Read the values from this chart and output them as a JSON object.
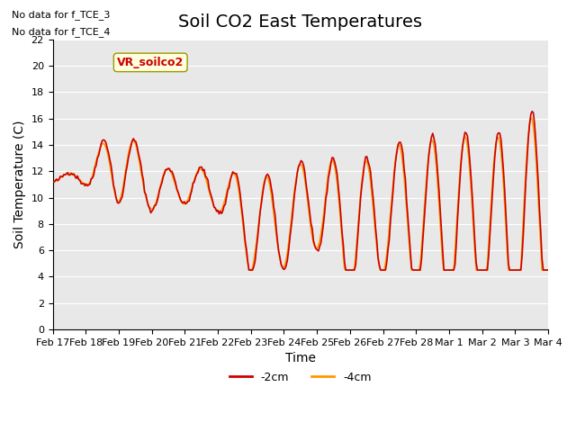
{
  "title": "Soil CO2 East Temperatures",
  "xlabel": "Time",
  "ylabel": "Soil Temperature (C)",
  "ylim": [
    0,
    22
  ],
  "yticks": [
    0,
    2,
    4,
    6,
    8,
    10,
    12,
    14,
    16,
    18,
    20,
    22
  ],
  "xtick_labels": [
    "Feb 17",
    "Feb 18",
    "Feb 19",
    "Feb 20",
    "Feb 21",
    "Feb 22",
    "Feb 23",
    "Feb 24",
    "Feb 25",
    "Feb 26",
    "Feb 27",
    "Feb 28",
    "Mar 1",
    "Mar 2",
    "Mar 3",
    "Mar 4"
  ],
  "line_2cm_color": "#cc0000",
  "line_4cm_color": "#ff9900",
  "line_width": 1.2,
  "plot_bg_color": "#e8e8e8",
  "legend_label_2cm": "-2cm",
  "legend_label_4cm": "-4cm",
  "annotation_text": "VR_soilco2",
  "no_data_text1": "No data for f_TCE_3",
  "no_data_text2": "No data for f_TCE_4",
  "title_fontsize": 14,
  "axis_label_fontsize": 10,
  "tick_fontsize": 8,
  "n_points": 400
}
